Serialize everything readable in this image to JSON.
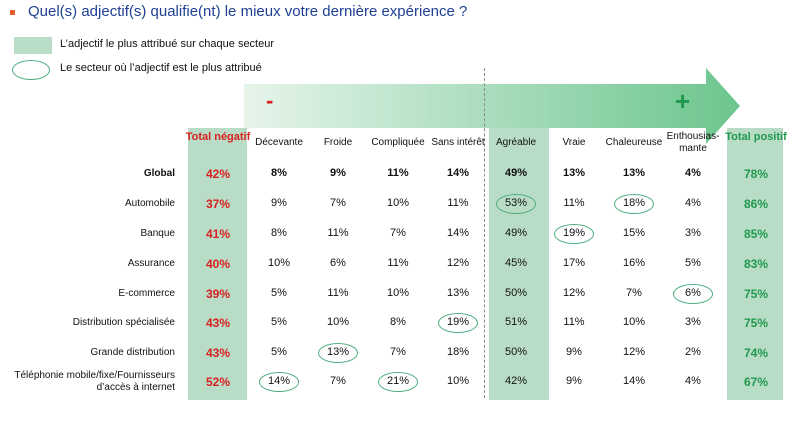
{
  "title": "Quel(s) adjectif(s) qualifie(nt) le mieux votre dernière expérience ?",
  "legend": {
    "highlight_label": "L’adjectif le plus attribué sur chaque secteur",
    "circle_label": "Le secteur où l’adjectif est le plus attribué"
  },
  "arrow": {
    "minus": "-",
    "plus": "+"
  },
  "colors": {
    "negative": "#d81f1f",
    "positive": "#1f9a4d",
    "highlight": "#b9dcc7",
    "circle": "#4cae7d",
    "arrow": "#6cc58e"
  },
  "chart_data": {
    "type": "table",
    "columns": [
      "Total négatif",
      "Décevante",
      "Froide",
      "Compliquée",
      "Sans intérêt",
      "Agréable",
      "Vraie",
      "Chaleureuse",
      "Enthousias-mante",
      "Total positif"
    ],
    "rows": [
      {
        "label": "Global",
        "values": [
          "42%",
          "8%",
          "9%",
          "11%",
          "14%",
          "49%",
          "13%",
          "13%",
          "4%",
          "78%"
        ],
        "circled": []
      },
      {
        "label": "Automobile",
        "values": [
          "37%",
          "9%",
          "7%",
          "10%",
          "11%",
          "53%",
          "11%",
          "18%",
          "4%",
          "86%"
        ],
        "circled": [
          5,
          7
        ]
      },
      {
        "label": "Banque",
        "values": [
          "41%",
          "8%",
          "11%",
          "7%",
          "14%",
          "49%",
          "19%",
          "15%",
          "3%",
          "85%"
        ],
        "circled": [
          6
        ]
      },
      {
        "label": "Assurance",
        "values": [
          "40%",
          "10%",
          "6%",
          "11%",
          "12%",
          "45%",
          "17%",
          "16%",
          "5%",
          "83%"
        ],
        "circled": []
      },
      {
        "label": "E-commerce",
        "values": [
          "39%",
          "5%",
          "11%",
          "10%",
          "13%",
          "50%",
          "12%",
          "7%",
          "6%",
          "75%"
        ],
        "circled": [
          8
        ]
      },
      {
        "label": "Distribution spécialisée",
        "values": [
          "43%",
          "5%",
          "10%",
          "8%",
          "19%",
          "51%",
          "11%",
          "10%",
          "3%",
          "75%"
        ],
        "circled": [
          4
        ]
      },
      {
        "label": "Grande distribution",
        "values": [
          "43%",
          "5%",
          "13%",
          "7%",
          "18%",
          "50%",
          "9%",
          "12%",
          "2%",
          "74%"
        ],
        "circled": [
          2
        ]
      },
      {
        "label": "Téléphonie mobile/fixe/Fournisseurs d’accès à internet",
        "values": [
          "52%",
          "14%",
          "7%",
          "21%",
          "10%",
          "42%",
          "9%",
          "14%",
          "4%",
          "67%"
        ],
        "circled": [
          1,
          3
        ]
      }
    ],
    "highlighted_columns": [
      0,
      5,
      9
    ]
  }
}
